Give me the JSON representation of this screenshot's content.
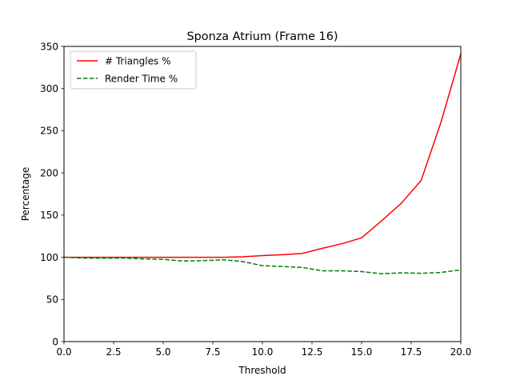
{
  "chart_data": {
    "type": "line",
    "title": "Sponza Atrium (Frame 16)",
    "xlabel": "Threshold",
    "ylabel": "Percentage",
    "xlim": [
      0,
      20
    ],
    "ylim": [
      0,
      350
    ],
    "xticks": [
      0,
      2.5,
      5,
      7.5,
      10,
      12.5,
      15,
      17.5,
      20
    ],
    "xtick_labels": [
      "0.0",
      "2.5",
      "5.0",
      "7.5",
      "10.0",
      "12.5",
      "15.0",
      "17.5",
      "20.0"
    ],
    "yticks": [
      0,
      50,
      100,
      150,
      200,
      250,
      300,
      350
    ],
    "ytick_labels": [
      "0",
      "50",
      "100",
      "150",
      "200",
      "250",
      "300",
      "350"
    ],
    "grid": false,
    "legend_position": "top-left",
    "x": [
      0,
      1,
      2,
      3,
      4,
      5,
      6,
      7,
      8,
      9,
      10,
      11,
      12,
      13,
      14,
      15,
      16,
      17,
      18,
      19,
      20
    ],
    "series": [
      {
        "name": "# Triangles %",
        "color": "#ff0000",
        "linestyle": "solid",
        "values": [
          100,
          100,
          100,
          100,
          100,
          100,
          100,
          100,
          100,
          100.5,
          102,
          103,
          104.5,
          110.5,
          116,
          123,
          143,
          164,
          191,
          260,
          341
        ]
      },
      {
        "name": "Render Time %",
        "color": "#008000",
        "linestyle": "dashed",
        "values": [
          100,
          99,
          99,
          99,
          98,
          97.5,
          95.5,
          96,
          97,
          95,
          90,
          89,
          88,
          84,
          84,
          83,
          80.5,
          81.5,
          81,
          82,
          85
        ]
      }
    ]
  }
}
